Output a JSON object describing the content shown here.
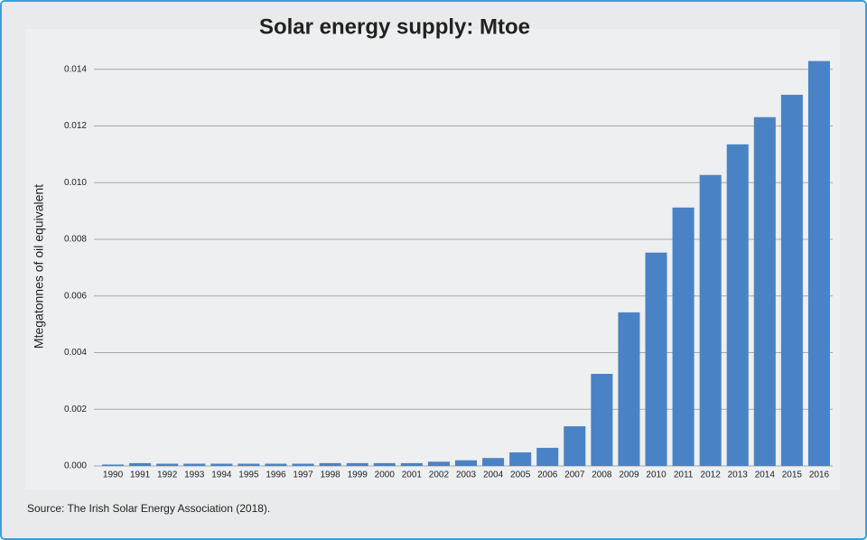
{
  "chart_data": {
    "type": "bar",
    "title": "Solar energy supply: Mtoe",
    "y_label": "Mtegatonnes of oil equivalent",
    "source": "Source: The Irish Solar Energy Association (2018).",
    "categories": [
      "1990",
      "1991",
      "1992",
      "1993",
      "1994",
      "1995",
      "1996",
      "1997",
      "1998",
      "1999",
      "2000",
      "2001",
      "2002",
      "2003",
      "2004",
      "2005",
      "2006",
      "2007",
      "2008",
      "2009",
      "2010",
      "2011",
      "2012",
      "2013",
      "2014",
      "2015",
      "2016"
    ],
    "values": [
      5e-05,
      0.0001,
      8e-05,
      8e-05,
      8e-05,
      8e-05,
      8e-05,
      8e-05,
      0.0001,
      0.0001,
      0.0001,
      0.0001,
      0.00015,
      0.0002,
      0.00028,
      0.00048,
      0.00064,
      0.0014,
      0.00325,
      0.00542,
      0.00753,
      0.00912,
      0.01027,
      0.01135,
      0.01231,
      0.0131,
      0.01429
    ],
    "color": "#4a83c5",
    "ylim": [
      0,
      0.0145
    ],
    "yticks": [
      {
        "value": 0,
        "label": "0.000"
      },
      {
        "value": 0.002,
        "label": "0.002"
      },
      {
        "value": 0.004,
        "label": "0.004"
      },
      {
        "value": 0.006,
        "label": "0.006"
      },
      {
        "value": 0.008,
        "label": "0.008"
      },
      {
        "value": 0.01,
        "label": "0.010"
      },
      {
        "value": 0.012,
        "label": "0.012"
      },
      {
        "value": 0.014,
        "label": "0.014"
      }
    ],
    "grid": true
  }
}
